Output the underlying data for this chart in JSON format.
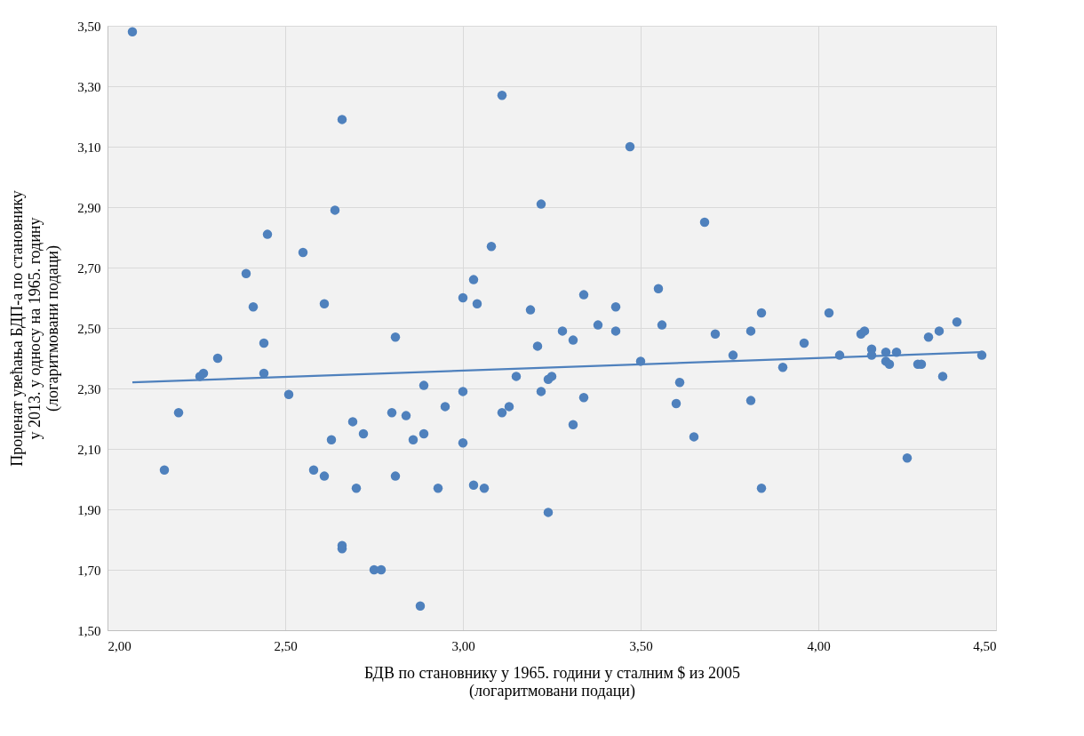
{
  "chart_data": {
    "type": "scatter",
    "xlabel": "БДВ по становнику у 1965. години у сталним $ из 2005\n(логаритмовани подаци)",
    "ylabel": "Проценат увећања БДП-а по становнику\nу 2013. у односу на 1965. годину\n(логаритмовани подаци)",
    "xlim": [
      2.0,
      4.5
    ],
    "ylim": [
      1.5,
      3.5
    ],
    "xticks": [
      {
        "value": 2.0,
        "label": "2,00"
      },
      {
        "value": 2.5,
        "label": "2,50"
      },
      {
        "value": 3.0,
        "label": "3,00"
      },
      {
        "value": 3.5,
        "label": "3,50"
      },
      {
        "value": 4.0,
        "label": "4,00"
      },
      {
        "value": 4.5,
        "label": "4,50"
      }
    ],
    "yticks": [
      {
        "value": 1.5,
        "label": "1,50"
      },
      {
        "value": 1.7,
        "label": "1,70"
      },
      {
        "value": 1.9,
        "label": "1,90"
      },
      {
        "value": 2.1,
        "label": "2,10"
      },
      {
        "value": 2.3,
        "label": "2,30"
      },
      {
        "value": 2.5,
        "label": "2,50"
      },
      {
        "value": 2.7,
        "label": "2,70"
      },
      {
        "value": 2.9,
        "label": "2,90"
      },
      {
        "value": 3.1,
        "label": "3,10"
      },
      {
        "value": 3.3,
        "label": "3,30"
      },
      {
        "value": 3.5,
        "label": "3,50"
      }
    ],
    "grid": true,
    "series": [
      {
        "color": "#4f81bd",
        "marker": "circle",
        "x": [
          2.07,
          2.16,
          2.2,
          2.26,
          2.27,
          2.31,
          2.39,
          2.41,
          2.44,
          2.44,
          2.45,
          2.51,
          2.55,
          2.58,
          2.61,
          2.61,
          2.63,
          2.64,
          2.66,
          2.66,
          2.66,
          2.69,
          2.7,
          2.72,
          2.75,
          2.77,
          2.8,
          2.81,
          2.81,
          2.84,
          2.86,
          2.88,
          2.89,
          2.89,
          2.93,
          2.95,
          3.0,
          3.0,
          3.0,
          3.03,
          3.03,
          3.04,
          3.06,
          3.08,
          3.11,
          3.11,
          3.13,
          3.15,
          3.19,
          3.21,
          3.22,
          3.22,
          3.24,
          3.25,
          3.24,
          3.28,
          3.31,
          3.31,
          3.34,
          3.34,
          3.38,
          3.43,
          3.43,
          3.47,
          3.5,
          3.55,
          3.56,
          3.6,
          3.61,
          3.65,
          3.68,
          3.71,
          3.76,
          3.81,
          3.81,
          3.84,
          3.84,
          3.9,
          3.96,
          4.03,
          4.06,
          4.12,
          4.13,
          4.15,
          4.15,
          4.19,
          4.19,
          4.2,
          4.22,
          4.25,
          4.28,
          4.29,
          4.31,
          4.34,
          4.35,
          4.39,
          4.46
        ],
        "values": [
          3.48,
          2.03,
          2.22,
          2.34,
          2.35,
          2.4,
          2.68,
          2.57,
          2.45,
          2.35,
          2.81,
          2.28,
          2.75,
          2.03,
          2.01,
          2.58,
          2.13,
          2.89,
          1.77,
          1.78,
          3.19,
          2.19,
          1.97,
          2.15,
          1.7,
          1.7,
          2.22,
          2.47,
          2.01,
          2.21,
          2.13,
          1.58,
          2.31,
          2.15,
          1.97,
          2.24,
          2.6,
          2.29,
          2.12,
          2.66,
          1.98,
          2.58,
          1.97,
          2.77,
          2.22,
          3.27,
          2.24,
          2.34,
          2.56,
          2.44,
          2.29,
          2.91,
          2.33,
          2.34,
          1.89,
          2.49,
          2.18,
          2.46,
          2.27,
          2.61,
          2.51,
          2.49,
          2.57,
          3.1,
          2.39,
          2.63,
          2.51,
          2.25,
          2.32,
          2.14,
          2.85,
          2.48,
          2.41,
          2.26,
          2.49,
          1.97,
          2.55,
          2.37,
          2.45,
          2.55,
          2.41,
          2.48,
          2.49,
          2.43,
          2.41,
          2.42,
          2.39,
          2.38,
          2.42,
          2.07,
          2.38,
          2.38,
          2.47,
          2.49,
          2.34,
          2.52,
          2.41
        ]
      },
      {
        "type": "line",
        "marker": "none",
        "color": "#4f81bd",
        "x": [
          2.07,
          4.46
        ],
        "values": [
          2.32,
          2.42
        ]
      }
    ]
  }
}
